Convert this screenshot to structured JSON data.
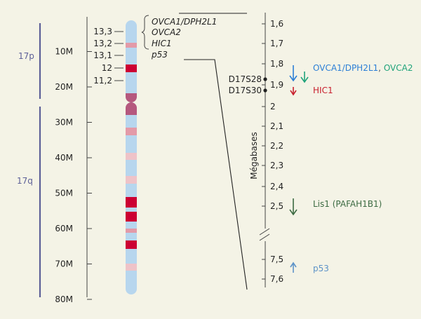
{
  "arm_labels": {
    "p": "17p",
    "q": "17q"
  },
  "megabase_ruler": {
    "ticks": [
      {
        "label": "10M",
        "mb": 10
      },
      {
        "label": "20M",
        "mb": 20
      },
      {
        "label": "30M",
        "mb": 30
      },
      {
        "label": "40M",
        "mb": 40
      },
      {
        "label": "50M",
        "mb": 50
      },
      {
        "label": "60M",
        "mb": 60
      },
      {
        "label": "70M",
        "mb": 70
      },
      {
        "label": "80M",
        "mb": 80
      }
    ]
  },
  "bands": [
    {
      "label": "13,3"
    },
    {
      "label": "13,2"
    },
    {
      "label": "13,1"
    },
    {
      "label": "12"
    },
    {
      "label": "11,2"
    }
  ],
  "gene_list": [
    "OVCA1/DPH2L1",
    "OVCA2",
    "HIC1",
    "p53"
  ],
  "markers": [
    "D17S28",
    "D17S30"
  ],
  "zoom_axis": {
    "title": "Mégabases",
    "ticks": [
      "1,6",
      "1,7",
      "1,8",
      "1,9",
      "2",
      "2,1",
      "2,2",
      "2,3",
      "2,4",
      "2,5",
      "7,5",
      "7,6"
    ]
  },
  "gene_annotations": {
    "ovca1": "OVCA1/DPH2L1",
    "sep": ", ",
    "ovca2": "OVCA2",
    "hic1": "HIC1",
    "lis1": "Lis1 (PAFAH1B1)",
    "p53": "p53"
  },
  "colors": {
    "background": "#f4f3e6",
    "chromatid": "#b7d6ee",
    "band_dark": "#cc0033",
    "band_light": "#e39aa8",
    "band_pale": "#eec3c8",
    "centromere": "#b5587e",
    "arm_bracket": "#5d6098",
    "ovca1": "#2c7fd6",
    "ovca2": "#1fa37a",
    "hic1": "#c8202e",
    "lis1": "#3c6b42",
    "p53": "#5d93c8"
  }
}
